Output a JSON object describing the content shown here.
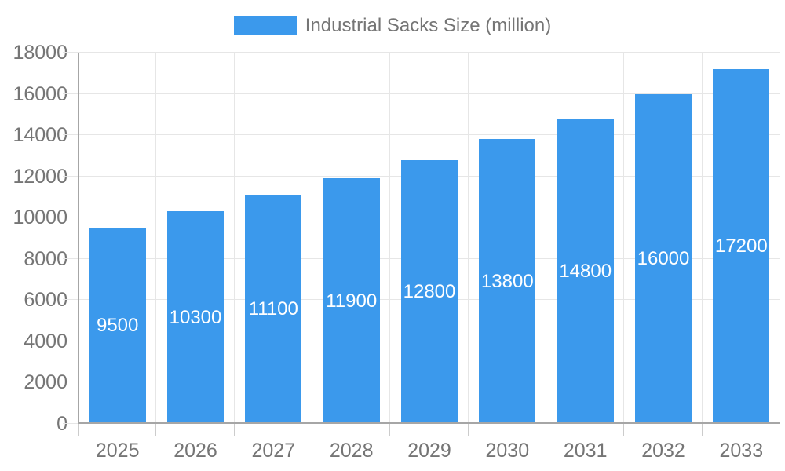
{
  "legend": {
    "label": "Industrial Sacks Size (million)"
  },
  "chart_data": {
    "type": "bar",
    "title": "Industrial Sacks Size (million)",
    "series_name": "Industrial Sacks Size (million)",
    "categories": [
      "2025",
      "2026",
      "2027",
      "2028",
      "2029",
      "2030",
      "2031",
      "2032",
      "2033"
    ],
    "values": [
      9500,
      10300,
      11100,
      11900,
      12800,
      13800,
      14800,
      16000,
      17200
    ],
    "value_labels": [
      "9500",
      "10300",
      "11100",
      "11900",
      "12800",
      "13800",
      "14800",
      "16000",
      "17200"
    ],
    "xlabel": "",
    "ylabel": "",
    "ylim": [
      0,
      18000
    ],
    "ytick_step": 2000,
    "yticks": [
      0,
      2000,
      4000,
      6000,
      8000,
      10000,
      12000,
      14000,
      16000,
      18000
    ],
    "grid": true,
    "legend_position": "top-center"
  },
  "colors": {
    "bar": "#3B99EC",
    "value_label": "#ffffff",
    "axis_label": "#757575",
    "legend_label": "#757575",
    "gridline": "#e6e6e6",
    "x_tick": "#cccccc",
    "axis_line": "#a6a6a6",
    "background": "#ffffff"
  }
}
